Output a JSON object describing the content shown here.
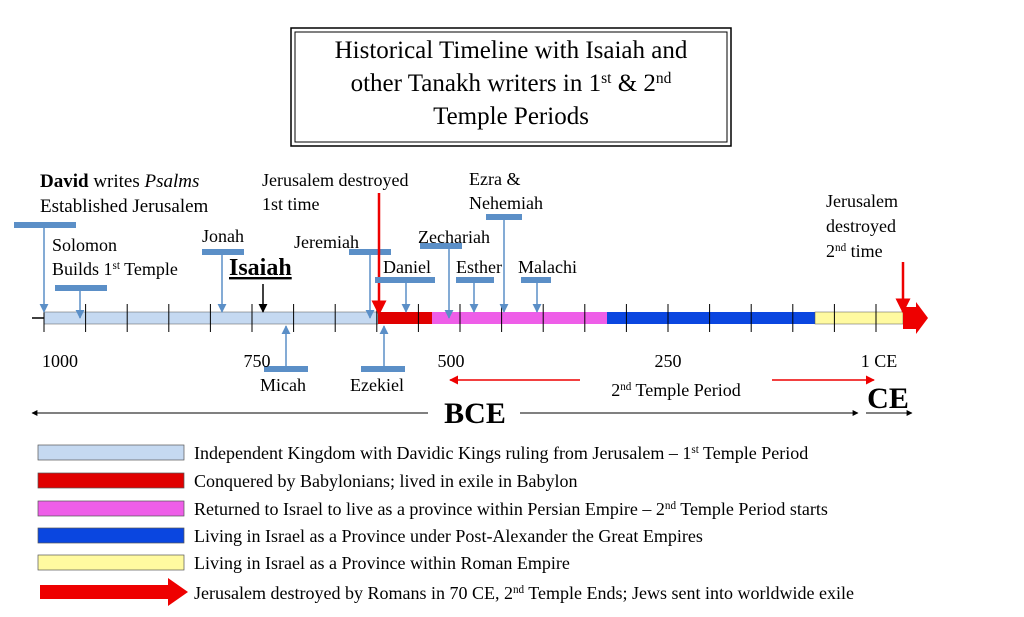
{
  "title": {
    "lines": [
      [
        "Historical Timeline with Isaiah and"
      ],
      [
        "other Tanakh writers in 1",
        {
          "sup": "st"
        },
        " & 2",
        {
          "sup": "nd"
        }
      ],
      [
        "Temple Periods"
      ]
    ]
  },
  "events": {
    "david": {
      "lines": [
        [
          {
            "b": "David"
          },
          " writes ",
          {
            "i": "Psalms"
          }
        ],
        [
          "Established Jerusalem"
        ]
      ]
    },
    "solomon": {
      "lines": [
        [
          "Solomon"
        ],
        [
          "Builds 1",
          {
            "sup": "st"
          },
          " Temple"
        ]
      ]
    },
    "jonah": {
      "lines": [
        [
          "Jonah"
        ]
      ]
    },
    "isaiah": {
      "lines": [
        [
          {
            "bu": "Isaiah"
          }
        ]
      ]
    },
    "jeremiah": {
      "lines": [
        [
          "Jeremiah"
        ]
      ]
    },
    "jerusalem_first": {
      "lines": [
        [
          "Jerusalem destroyed"
        ],
        [
          "1st time"
        ]
      ]
    },
    "daniel": {
      "lines": [
        [
          "Daniel"
        ]
      ]
    },
    "zechariah": {
      "lines": [
        [
          "Zechariah"
        ]
      ]
    },
    "ezra": {
      "lines": [
        [
          "Ezra &"
        ],
        [
          "Nehemiah"
        ]
      ]
    },
    "esther": {
      "lines": [
        [
          "Esther"
        ]
      ]
    },
    "malachi": {
      "lines": [
        [
          "Malachi"
        ]
      ]
    },
    "jerusalem_second": {
      "lines": [
        [
          "Jerusalem"
        ],
        [
          "destroyed"
        ],
        [
          "2",
          {
            "sup": "nd"
          },
          " time"
        ]
      ]
    },
    "micah": {
      "lines": [
        [
          "Micah"
        ]
      ]
    },
    "ezekiel": {
      "lines": [
        [
          "Ezekiel"
        ]
      ]
    }
  },
  "axis_labels": [
    "1000",
    "750",
    "500",
    "250",
    "1 CE"
  ],
  "second_temple": {
    "lines": [
      [
        "2",
        {
          "sup": "nd"
        },
        " Temple Period"
      ]
    ]
  },
  "bce": "BCE",
  "ce": "CE",
  "legend": [
    {
      "lines": [
        [
          "Independent Kingdom with Davidic Kings ruling from Jerusalem – 1",
          {
            "sup": "st"
          },
          " Temple Period"
        ]
      ]
    },
    {
      "lines": [
        [
          "Conquered by Babylonians; lived in exile in Babylon"
        ]
      ]
    },
    {
      "lines": [
        [
          "Returned to Israel to live as a province within Persian Empire – 2",
          {
            "sup": "nd"
          },
          " Temple Period starts"
        ]
      ]
    },
    {
      "lines": [
        [
          "Living in Israel as a Province under Post-Alexander the Great Empires"
        ]
      ]
    },
    {
      "lines": [
        [
          "Living in Israel as a Province within Roman Empire"
        ]
      ]
    },
    {
      "lines": [
        [
          "Jerusalem destroyed by Romans in 70 CE, 2",
          {
            "sup": "nd"
          },
          " Temple Ends; Jews sent into worldwide exile"
        ]
      ]
    }
  ]
}
